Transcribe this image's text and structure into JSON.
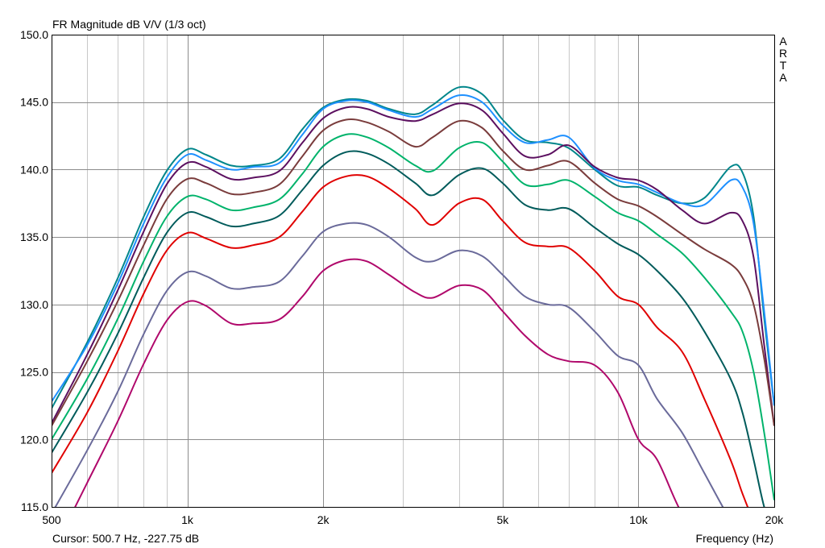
{
  "window": {
    "brand_letters": [
      "A",
      "R",
      "T",
      "A"
    ]
  },
  "status": {
    "cursor": "Cursor: 500.7 Hz, -227.75 dB"
  },
  "chart_data": {
    "type": "line",
    "title": "FR Magnitude dB V/V (1/3 oct)",
    "xlabel": "Frequency (Hz)",
    "ylabel": "",
    "x_scale": "log",
    "xlim": [
      500,
      20000
    ],
    "ylim": [
      115,
      150
    ],
    "grid": true,
    "x_tick_labels": [
      {
        "value": 500,
        "label": "500"
      },
      {
        "value": 1000,
        "label": "1k"
      },
      {
        "value": 2000,
        "label": "2k"
      },
      {
        "value": 5000,
        "label": "5k"
      },
      {
        "value": 10000,
        "label": "10k"
      },
      {
        "value": 20000,
        "label": "20k"
      }
    ],
    "x_grid_values": [
      500,
      600,
      700,
      800,
      900,
      1000,
      2000,
      3000,
      4000,
      5000,
      6000,
      7000,
      8000,
      9000,
      10000,
      20000
    ],
    "y_tick_labels": [
      {
        "value": 115,
        "label": "115.0"
      },
      {
        "value": 120,
        "label": "120.0"
      },
      {
        "value": 125,
        "label": "125.0"
      },
      {
        "value": 130,
        "label": "130.0"
      },
      {
        "value": 135,
        "label": "135.0"
      },
      {
        "value": 140,
        "label": "140.0"
      },
      {
        "value": 145,
        "label": "145.0"
      },
      {
        "value": 150,
        "label": "150.0"
      }
    ],
    "x": [
      500,
      600,
      700,
      800,
      900,
      1000,
      1100,
      1250,
      1400,
      1600,
      1800,
      2000,
      2250,
      2500,
      2800,
      3200,
      3500,
      4000,
      4500,
      5000,
      5600,
      6300,
      7000,
      8000,
      9000,
      10000,
      11000,
      12500,
      14000,
      16000,
      17000,
      18000,
      19000,
      20000
    ],
    "series": [
      {
        "color": "#00868b",
        "values": [
          122.3,
          127.2,
          131.9,
          136.5,
          139.9,
          141.5,
          141.1,
          140.3,
          140.3,
          140.8,
          143.0,
          144.6,
          145.2,
          145.1,
          144.5,
          144.1,
          144.8,
          146.1,
          145.6,
          143.7,
          142.2,
          142.0,
          141.6,
          140.0,
          138.8,
          138.7,
          138.1,
          137.5,
          137.9,
          140.2,
          139.8,
          136.5,
          129.0,
          122.5
        ]
      },
      {
        "color": "#1e90ff",
        "values": [
          122.8,
          127.0,
          131.5,
          136.0,
          139.4,
          141.1,
          140.7,
          140.0,
          140.2,
          140.5,
          142.6,
          144.5,
          145.1,
          145.0,
          144.4,
          143.9,
          144.5,
          145.5,
          145.0,
          143.3,
          142.0,
          142.2,
          142.4,
          140.1,
          139.2,
          138.9,
          138.3,
          137.5,
          137.4,
          139.2,
          138.7,
          136.0,
          129.5,
          122.5
        ]
      },
      {
        "color": "#5c1060",
        "values": [
          121.2,
          126.3,
          131.0,
          135.4,
          138.9,
          140.5,
          140.2,
          139.3,
          139.4,
          139.9,
          142.0,
          143.8,
          144.6,
          144.5,
          143.9,
          143.6,
          144.1,
          144.9,
          144.4,
          142.7,
          141.0,
          141.1,
          141.8,
          140.2,
          139.4,
          139.2,
          138.5,
          137.0,
          136.0,
          136.8,
          136.2,
          133.5,
          127.0,
          121.0
        ]
      },
      {
        "color": "#7a3c3c",
        "values": [
          121.0,
          125.8,
          130.2,
          134.4,
          137.8,
          139.3,
          139.0,
          138.2,
          138.3,
          138.9,
          141.0,
          142.9,
          143.7,
          143.5,
          142.8,
          141.7,
          142.4,
          143.6,
          143.1,
          141.4,
          140.0,
          140.3,
          140.6,
          139.0,
          137.8,
          137.3,
          136.5,
          135.2,
          134.1,
          133.0,
          132.0,
          130.0,
          126.0,
          121.0
        ]
      },
      {
        "color": "#00b36b",
        "values": [
          120.0,
          124.5,
          128.9,
          133.2,
          136.5,
          138.0,
          137.8,
          137.0,
          137.2,
          137.8,
          139.7,
          141.7,
          142.6,
          142.4,
          141.6,
          140.3,
          139.9,
          141.6,
          142.0,
          140.6,
          138.9,
          138.9,
          139.2,
          138.0,
          136.8,
          136.2,
          135.2,
          133.8,
          132.0,
          129.5,
          128.0,
          125.0,
          120.5,
          115.5
        ]
      },
      {
        "color": "#005b5b",
        "values": [
          119.0,
          123.5,
          127.8,
          132.0,
          135.3,
          136.8,
          136.5,
          135.8,
          136.0,
          136.6,
          138.5,
          140.3,
          141.3,
          141.2,
          140.4,
          139.0,
          138.1,
          139.6,
          140.1,
          139.0,
          137.4,
          137.0,
          137.1,
          135.7,
          134.5,
          133.7,
          132.5,
          130.5,
          128.0,
          124.5,
          122.0,
          118.5,
          115.0,
          113.0
        ]
      },
      {
        "color": "#e00000",
        "values": [
          117.5,
          122.0,
          126.5,
          130.8,
          134.0,
          135.3,
          134.9,
          134.2,
          134.4,
          135.0,
          136.9,
          138.7,
          139.5,
          139.5,
          138.6,
          137.1,
          135.9,
          137.5,
          137.8,
          136.2,
          134.6,
          134.3,
          134.2,
          132.5,
          130.6,
          130.0,
          128.3,
          126.5,
          123.0,
          118.5,
          116.0,
          114.0,
          113.0,
          113.0
        ]
      },
      {
        "color": "#6a6a9a",
        "values": [
          114.5,
          119.2,
          123.5,
          127.8,
          131.0,
          132.4,
          132.1,
          131.2,
          131.3,
          131.7,
          133.6,
          135.4,
          136.0,
          135.9,
          135.0,
          133.5,
          133.2,
          134.0,
          133.6,
          132.2,
          130.6,
          130.0,
          129.8,
          128.0,
          126.2,
          125.5,
          123.0,
          120.5,
          117.5,
          114.0,
          113.0,
          113.0,
          113.0,
          113.0
        ]
      },
      {
        "color": "#b0086b",
        "values": [
          111.5,
          116.8,
          121.3,
          125.6,
          128.8,
          130.2,
          129.9,
          128.6,
          128.6,
          128.9,
          130.6,
          132.5,
          133.3,
          133.2,
          132.2,
          130.9,
          130.5,
          131.4,
          131.1,
          129.5,
          127.7,
          126.3,
          125.8,
          125.5,
          123.5,
          120.0,
          118.5,
          114.5,
          113.0,
          113.0,
          113.0,
          113.0,
          113.0,
          113.0
        ]
      }
    ]
  }
}
